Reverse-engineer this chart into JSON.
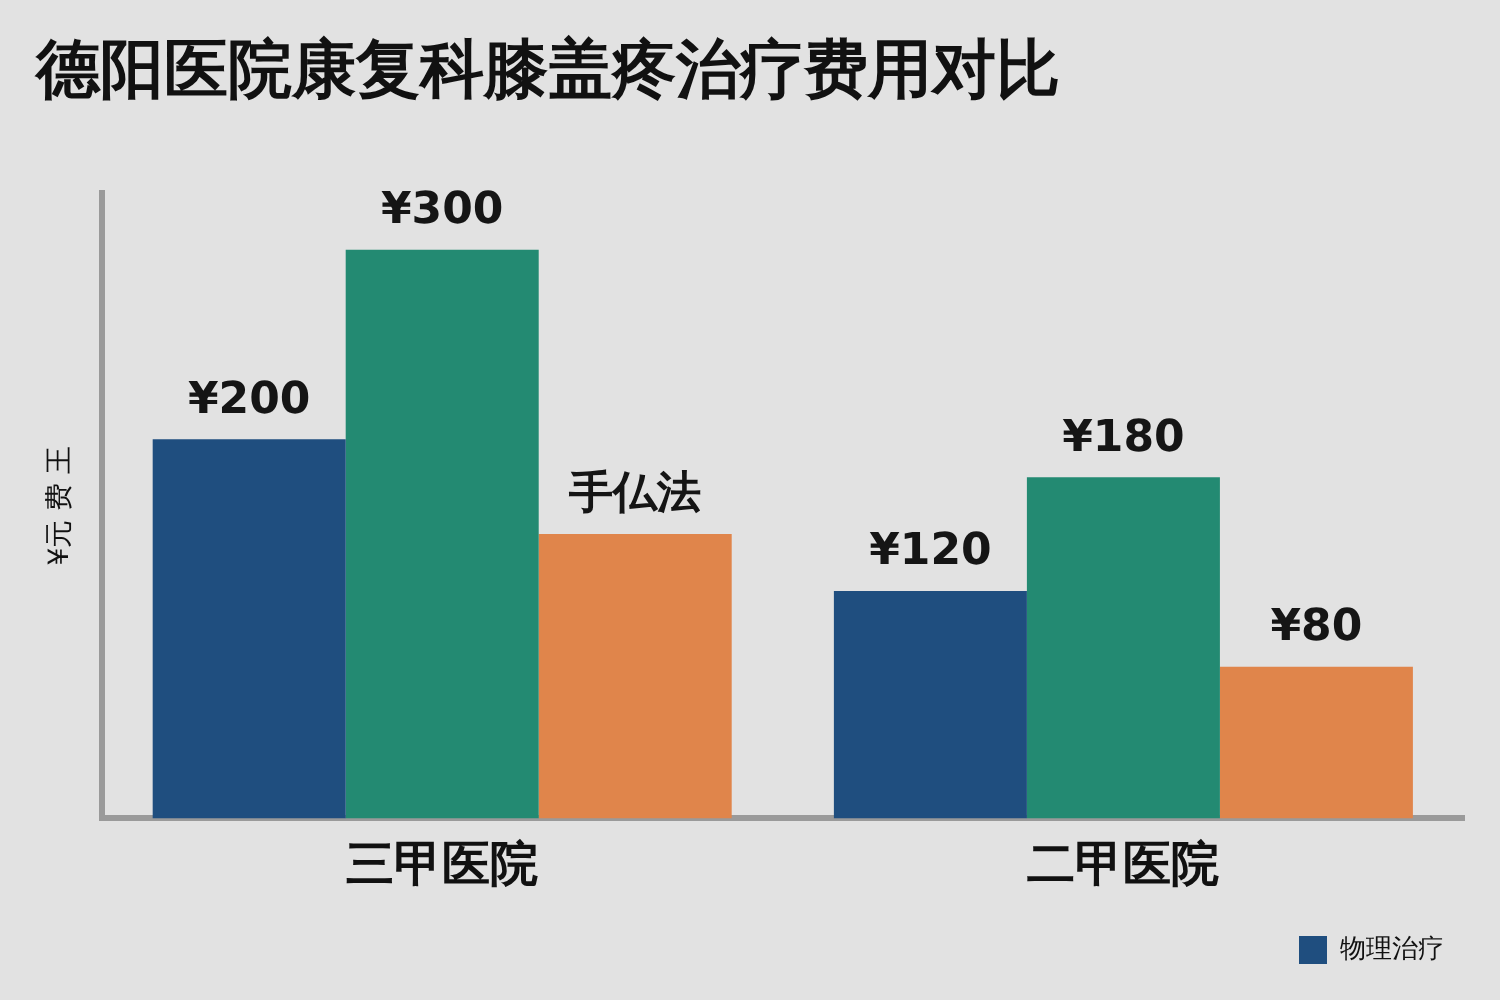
{
  "chart_data": {
    "type": "bar",
    "title": "德阳医院康复科膝盖疼治疗费用对比",
    "ylabel": "¥元 费 王",
    "categories": [
      "三甲医院",
      "二甲医院"
    ],
    "tick_labels": "x",
    "series": [
      {
        "name": "物理治疗",
        "color": "#1f4e7f",
        "values": [
          200,
          120
        ],
        "value_labels": [
          "¥200",
          "¥120"
        ]
      },
      {
        "color": "#238a72",
        "values": [
          300,
          180
        ],
        "value_labels": [
          "¥300",
          "¥180"
        ]
      },
      {
        "color": "#e0854b",
        "values": [
          150,
          80
        ],
        "value_labels": [
          "手仏法",
          "¥80"
        ]
      }
    ],
    "legend": "bottom right",
    "grid": false
  }
}
